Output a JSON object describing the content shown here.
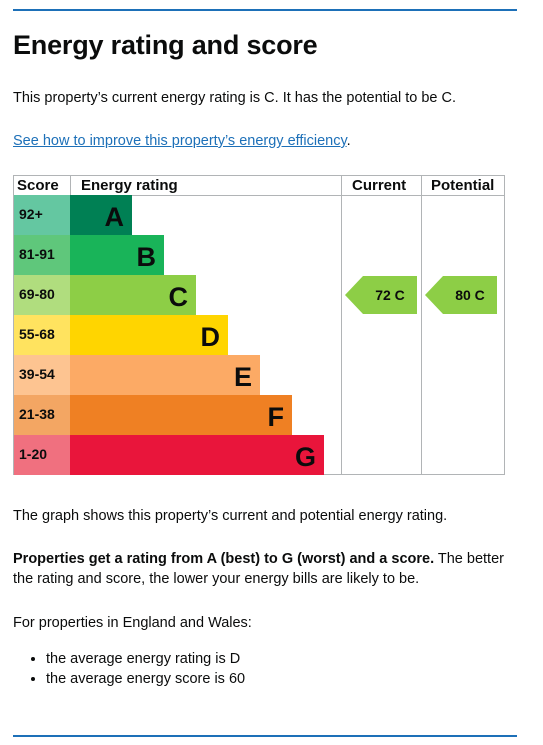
{
  "page": {
    "title": "Energy rating and score",
    "intro": "This property’s current energy rating is C. It has the potential to be C.",
    "improve_link": "See how to improve this property’s energy efficiency",
    "improve_suffix": ".",
    "graph_caption": "The graph shows this property’s current and potential energy rating.",
    "rating_bold": "Properties get a rating from A (best) to G (worst) and a score.",
    "rating_rest": " The better the rating and score, the lower your energy bills are likely to be.",
    "england_wales": "For properties in England and Wales:",
    "averages": [
      "the average energy rating is D",
      "the average energy score is 60"
    ]
  },
  "chart_data": {
    "type": "table",
    "columns": [
      "Score",
      "Energy rating",
      "Current",
      "Potential"
    ],
    "bands": [
      {
        "score": "92+",
        "letter": "A",
        "color": "#008054",
        "score_bg": "#64c7a1"
      },
      {
        "score": "81-91",
        "letter": "B",
        "color": "#19b459",
        "score_bg": "#5fc77b"
      },
      {
        "score": "69-80",
        "letter": "C",
        "color": "#8dce46",
        "score_bg": "#b0dd7e"
      },
      {
        "score": "55-68",
        "letter": "D",
        "color": "#ffd500",
        "score_bg": "#ffe35f"
      },
      {
        "score": "39-54",
        "letter": "E",
        "color": "#fcaa65",
        "score_bg": "#fdc491"
      },
      {
        "score": "21-38",
        "letter": "F",
        "color": "#ef8023",
        "score_bg": "#f3a663"
      },
      {
        "score": "1-20",
        "letter": "G",
        "color": "#e9153b",
        "score_bg": "#f0707f"
      }
    ],
    "current": {
      "score": 72,
      "letter": "C",
      "label": "72  C",
      "band": "C"
    },
    "potential": {
      "score": 80,
      "letter": "C",
      "label": "80  C",
      "band": "C"
    }
  }
}
